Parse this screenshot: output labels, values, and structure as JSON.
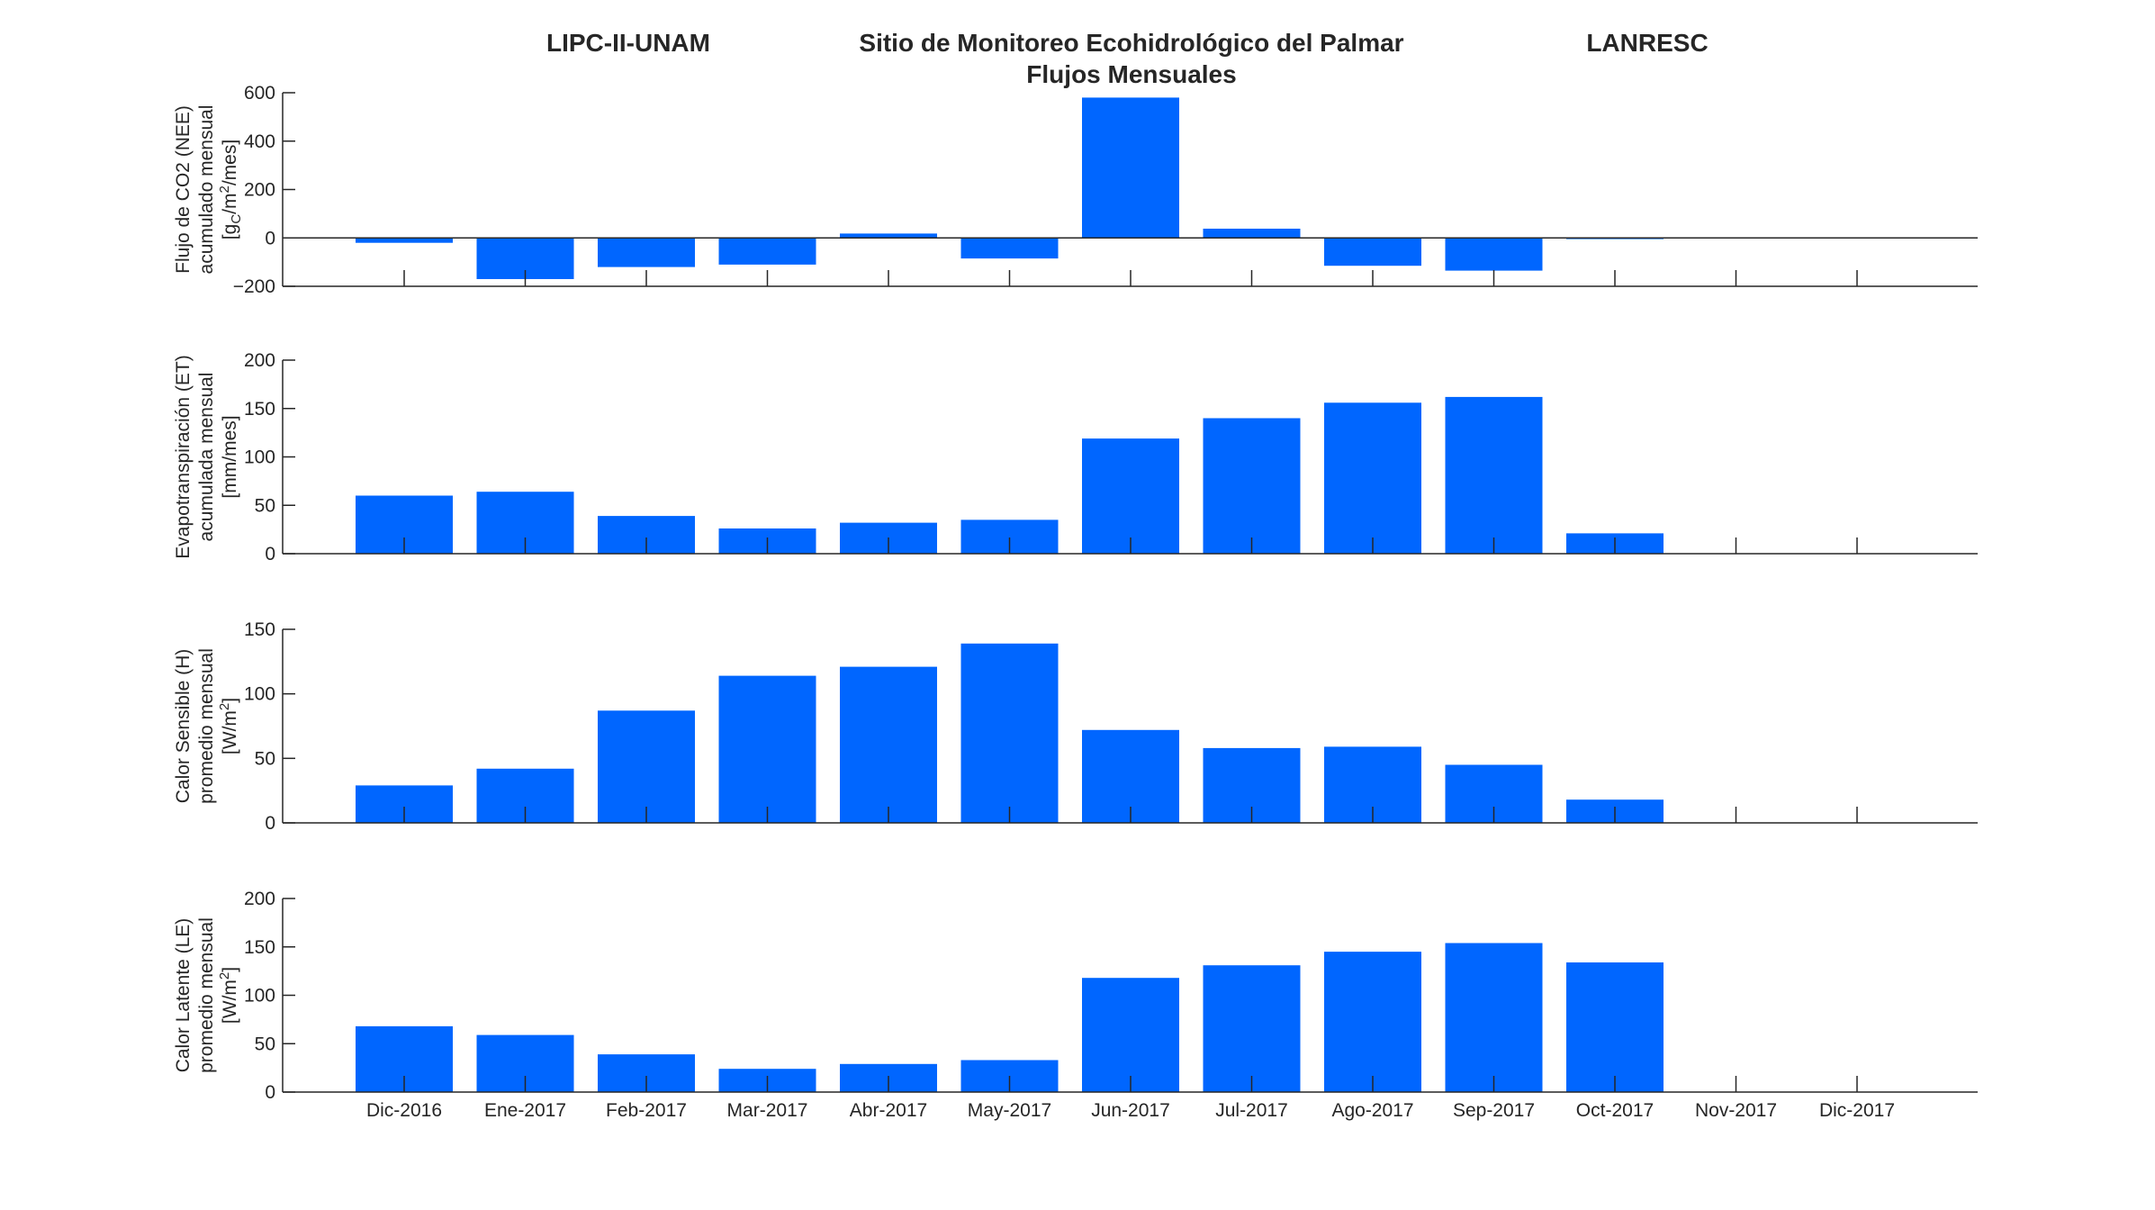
{
  "header": {
    "left": "LIPC-II-UNAM",
    "center_line1": "Sitio de Monitoreo Ecohidrológico del Palmar",
    "center_line2": "Flujos Mensuales",
    "right": "LANRESC"
  },
  "colors": {
    "bar": "#0066FF",
    "axis": "#262626"
  },
  "chart_data": [
    {
      "type": "bar",
      "ylabel_lines": [
        "Flujo de CO2 (NEE)",
        "acumulado mensual"
      ],
      "ylabel_unit": {
        "pre": "[g",
        "sub": "C",
        "mid": "/m",
        "sup": "2",
        "post": "/mes]"
      },
      "ylim": [
        -200,
        600
      ],
      "yticks": [
        -200,
        0,
        200,
        400,
        600
      ],
      "categories": [
        "Dic-2016",
        "Ene-2017",
        "Feb-2017",
        "Mar-2017",
        "Abr-2017",
        "May-2017",
        "Jun-2017",
        "Jul-2017",
        "Ago-2017",
        "Sep-2017",
        "Oct-2017",
        "Nov-2017",
        "Dic-2017"
      ],
      "values": [
        -20,
        -170,
        -120,
        -110,
        18,
        -85,
        580,
        38,
        -115,
        -135,
        -5,
        null,
        null
      ],
      "show_xtick_labels": false
    },
    {
      "type": "bar",
      "ylabel_lines": [
        "Evapotranspiración (ET)",
        "acumulada mensual"
      ],
      "ylabel_unit": {
        "pre": "[mm/mes]",
        "sub": "",
        "mid": "",
        "sup": "",
        "post": ""
      },
      "ylim": [
        0,
        200
      ],
      "yticks": [
        0,
        50,
        100,
        150,
        200
      ],
      "categories": [
        "Dic-2016",
        "Ene-2017",
        "Feb-2017",
        "Mar-2017",
        "Abr-2017",
        "May-2017",
        "Jun-2017",
        "Jul-2017",
        "Ago-2017",
        "Sep-2017",
        "Oct-2017",
        "Nov-2017",
        "Dic-2017"
      ],
      "values": [
        60,
        64,
        39,
        26,
        32,
        35,
        119,
        140,
        156,
        162,
        21,
        null,
        null
      ],
      "show_xtick_labels": false
    },
    {
      "type": "bar",
      "ylabel_lines": [
        "Calor Sensible (H)",
        "promedio mensual"
      ],
      "ylabel_unit": {
        "pre": "[W/m",
        "sub": "",
        "mid": "",
        "sup": "2",
        "post": "]"
      },
      "ylim": [
        0,
        150
      ],
      "yticks": [
        0,
        50,
        100,
        150
      ],
      "categories": [
        "Dic-2016",
        "Ene-2017",
        "Feb-2017",
        "Mar-2017",
        "Abr-2017",
        "May-2017",
        "Jun-2017",
        "Jul-2017",
        "Ago-2017",
        "Sep-2017",
        "Oct-2017",
        "Nov-2017",
        "Dic-2017"
      ],
      "values": [
        29,
        42,
        87,
        114,
        121,
        139,
        72,
        58,
        59,
        45,
        18,
        null,
        null
      ],
      "show_xtick_labels": false
    },
    {
      "type": "bar",
      "ylabel_lines": [
        "Calor Latente (LE)",
        "promedio mensual"
      ],
      "ylabel_unit": {
        "pre": "[W/m",
        "sub": "",
        "mid": "",
        "sup": "2",
        "post": "]"
      },
      "ylim": [
        0,
        200
      ],
      "yticks": [
        0,
        50,
        100,
        150,
        200
      ],
      "categories": [
        "Dic-2016",
        "Ene-2017",
        "Feb-2017",
        "Mar-2017",
        "Abr-2017",
        "May-2017",
        "Jun-2017",
        "Jul-2017",
        "Ago-2017",
        "Sep-2017",
        "Oct-2017",
        "Nov-2017",
        "Dic-2017"
      ],
      "values": [
        68,
        59,
        39,
        24,
        29,
        33,
        118,
        131,
        145,
        154,
        134,
        null,
        null
      ],
      "show_xtick_labels": true
    }
  ]
}
